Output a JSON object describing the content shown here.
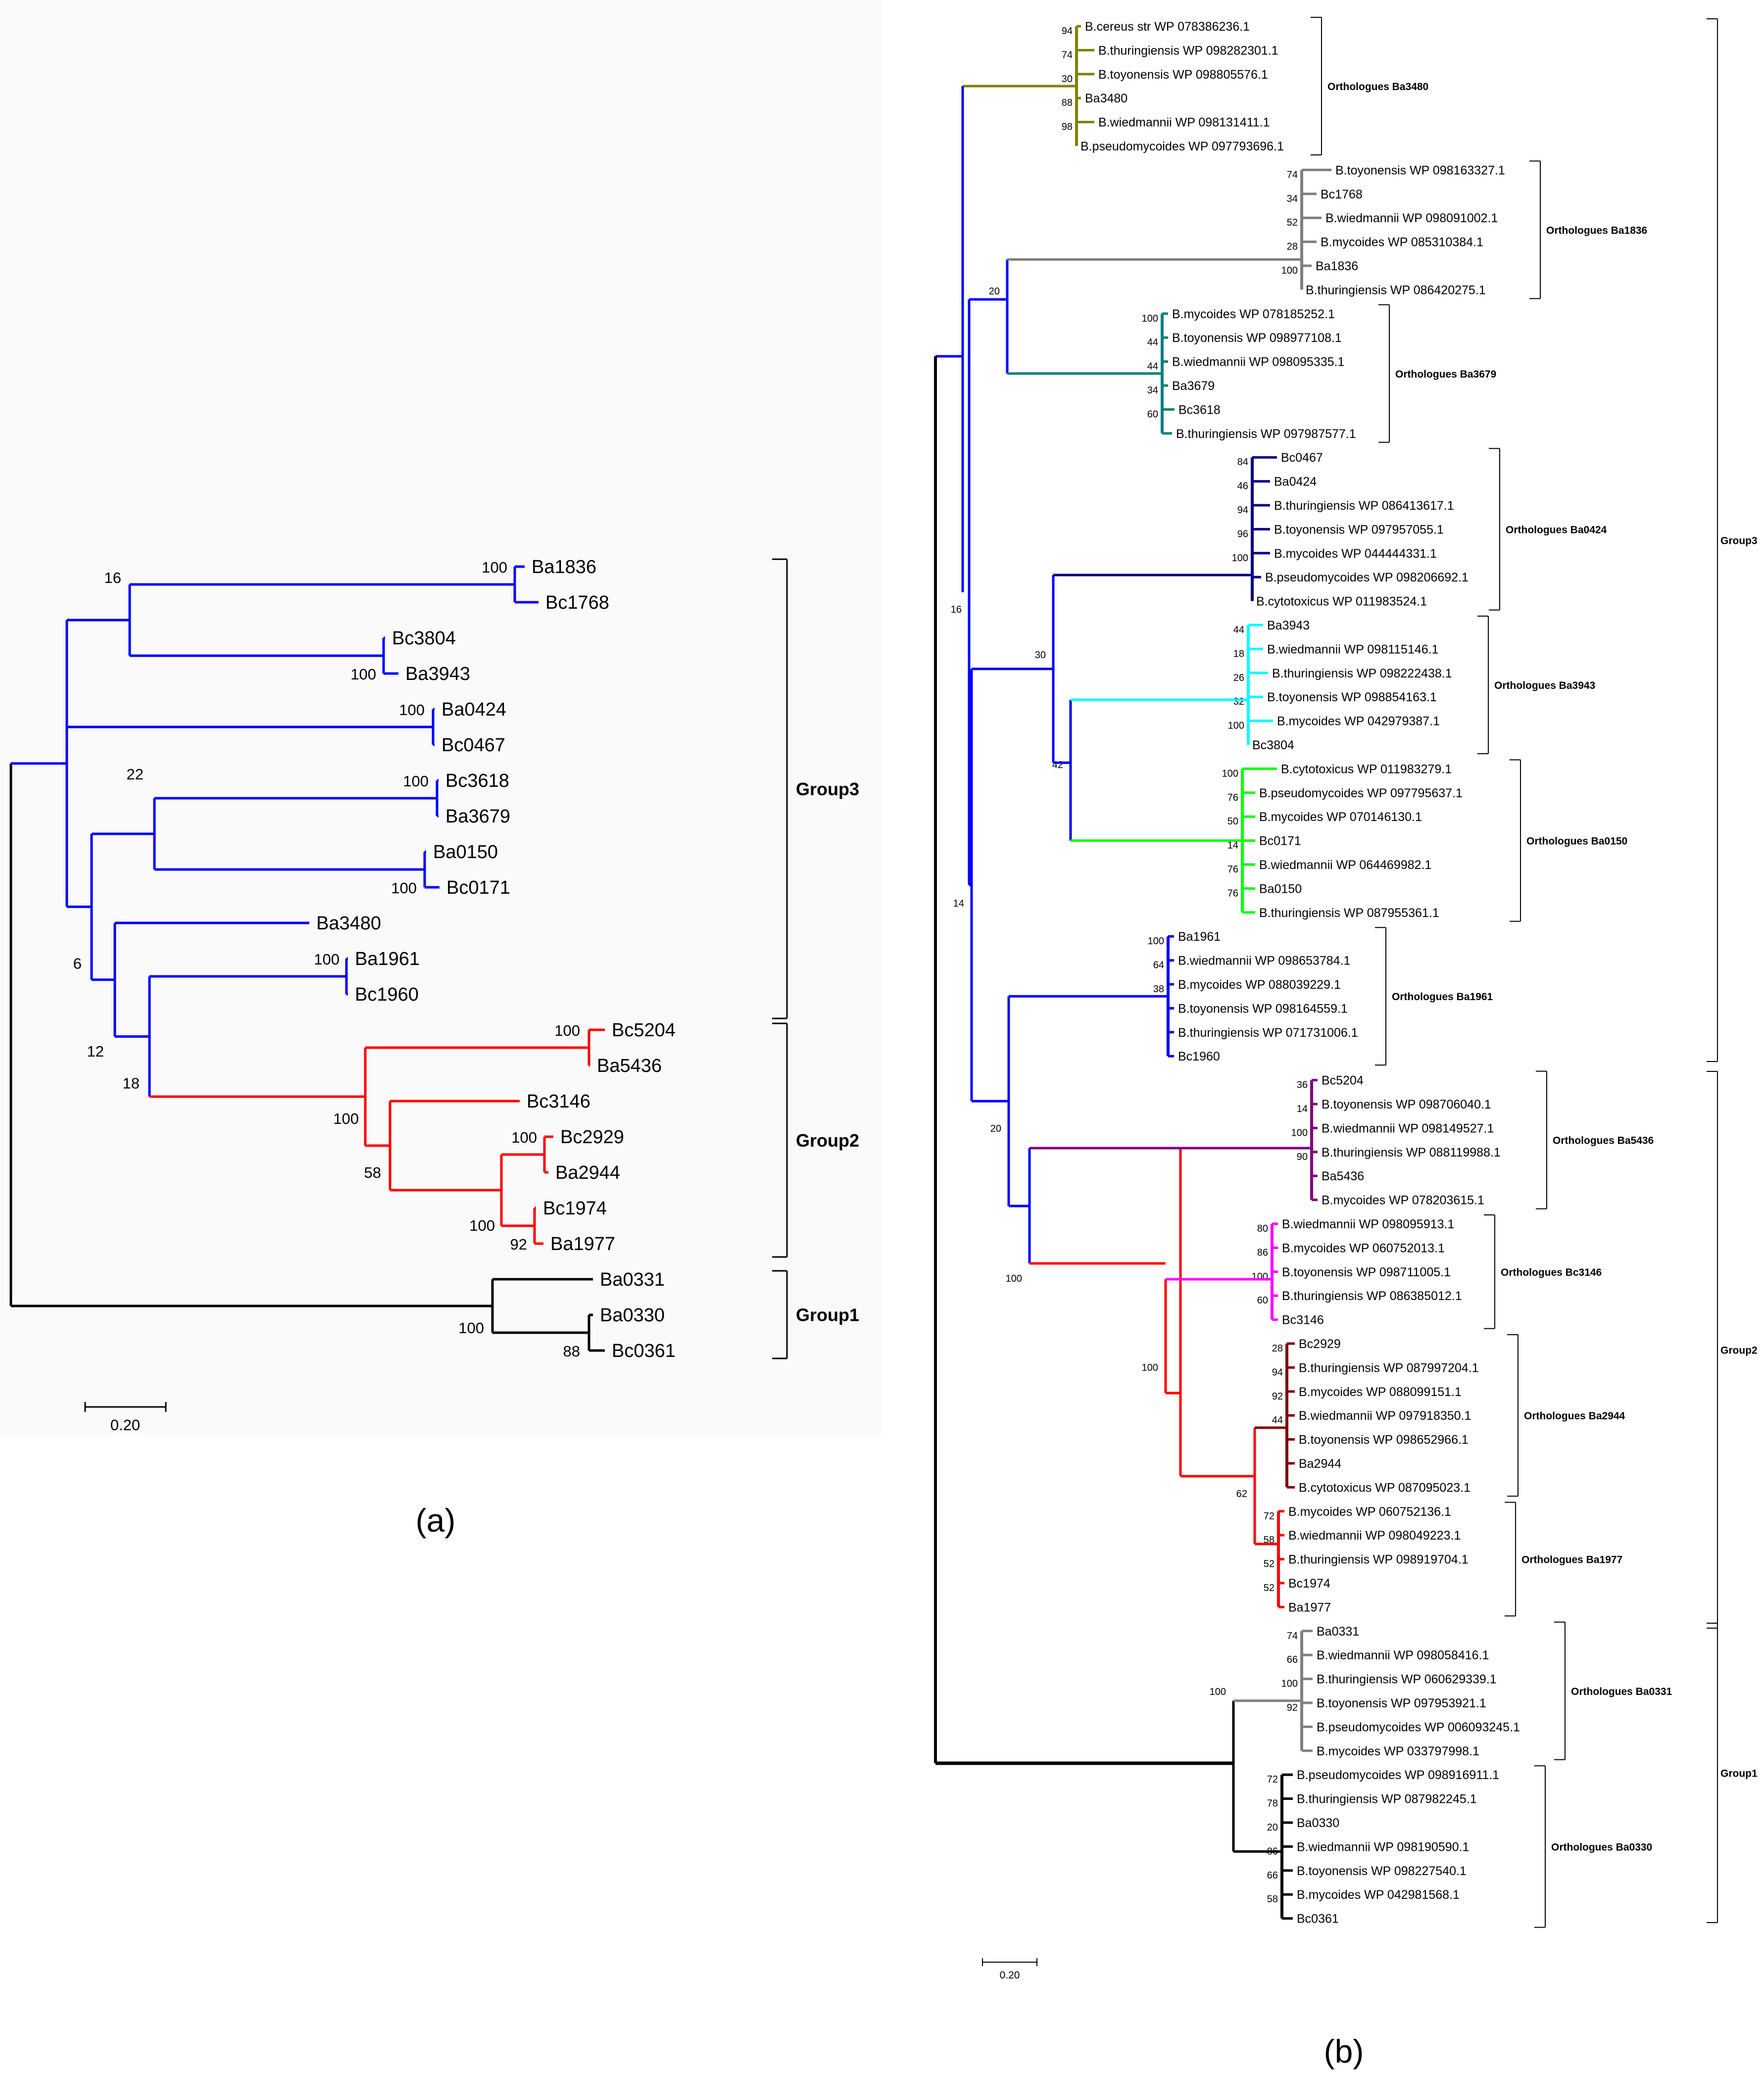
{
  "panel_a": {
    "caption": "(a)",
    "scale_label": "0.20",
    "leaves": [
      "Ba1836",
      "Bc1768",
      "Bc3804",
      "Ba3943",
      "Ba0424",
      "Bc0467",
      "Bc3618",
      "Ba3679",
      "Ba0150",
      "Bc0171",
      "Ba3480",
      "Ba1961",
      "Bc1960",
      "Bc5204",
      "Ba5436",
      "Bc3146",
      "Bc2929",
      "Ba2944",
      "Bc1974",
      "Ba1977",
      "Ba0331",
      "Ba0330",
      "Bc0361"
    ],
    "bootstrap": {
      "ba1836_bc1768": "100",
      "group16": "16",
      "bc3804_ba3943": "100",
      "ba0424_bc0467": "100",
      "bc3618_ba3679": "100",
      "group22": "22",
      "ba0150_bc0171": "100",
      "group6": "6",
      "group12": "12",
      "ba1961_bc1960": "100",
      "group18": "18",
      "bc5204_ba5436": "100",
      "group2_root": "100",
      "bc2929_ba2944": "100",
      "group58": "58",
      "ba2944_inner": "100",
      "bc1974_ba1977": "92",
      "group1_root": "100",
      "ba0330_bc0361": "88"
    },
    "groups": [
      "Group3",
      "Group2",
      "Group1"
    ]
  },
  "panel_b": {
    "caption": "(b)",
    "scale_label": "0.20",
    "colors": {
      "olive": "#808000",
      "gray": "#808080",
      "teal": "#008080",
      "navy": "#000080",
      "cyan": "#00ffff",
      "lime": "#00ff00",
      "blue": "#0000ff",
      "purple": "#800080",
      "magenta": "#ff00ff",
      "maroon": "#800000",
      "red": "#ff0000",
      "black": "#000000"
    },
    "clades": [
      {
        "label": "Orthologues Ba3480",
        "leaves": [
          "B.cereus str WP 078386236.1",
          "B.thuringiensis WP 098282301.1",
          "B.toyonensis WP 098805576.1",
          "Ba3480",
          "B.wiedmannii WP 098131411.1",
          "B.pseudomycoides WP 097793696.1"
        ],
        "support": [
          "94",
          "74",
          "30",
          "88",
          "98"
        ]
      },
      {
        "label": "Orthologues Ba1836",
        "leaves": [
          "B.toyonensis WP 098163327.1",
          "Bc1768",
          "B.wiedmannii WP 098091002.1",
          "B.mycoides WP 085310384.1",
          "Ba1836",
          "B.thuringiensis WP 086420275.1"
        ],
        "support": [
          "74",
          "34",
          "52",
          "28",
          "100"
        ]
      },
      {
        "label": "Orthologues Ba3679",
        "leaves": [
          "B.mycoides WP 078185252.1",
          "B.toyonensis WP 098977108.1",
          "B.wiedmannii WP 098095335.1",
          "Ba3679",
          "Bc3618",
          "B.thuringiensis WP 097987577.1"
        ],
        "support": [
          "100",
          "44",
          "44",
          "34",
          "60"
        ]
      },
      {
        "label": "Orthologues Ba0424",
        "leaves": [
          "Bc0467",
          "Ba0424",
          "B.thuringiensis WP 086413617.1",
          "B.toyonensis WP 097957055.1",
          "B.mycoides WP 044444331.1",
          "B.pseudomycoides WP 098206692.1",
          "B.cytotoxicus WP 011983524.1"
        ],
        "support": [
          "84",
          "46",
          "94",
          "96",
          "100"
        ]
      },
      {
        "label": "Orthologues Ba3943",
        "leaves": [
          "Ba3943",
          "B.wiedmannii WP 098115146.1",
          "B.thuringiensis WP 098222438.1",
          "B.toyonensis WP 098854163.1",
          "B.mycoides WP 042979387.1",
          "Bc3804"
        ],
        "support": [
          "44",
          "18",
          "26",
          "32",
          "100"
        ]
      },
      {
        "label": "Orthologues Ba0150",
        "leaves": [
          "B.cytotoxicus WP 011983279.1",
          "B.pseudomycoides WP 097795637.1",
          "B.mycoides WP 070146130.1",
          "Bc0171",
          "B.wiedmannii WP 064469982.1",
          "Ba0150",
          "B.thuringiensis WP 087955361.1"
        ],
        "support": [
          "100",
          "76",
          "50",
          "14",
          "76",
          "76"
        ]
      },
      {
        "label": "Orthologues Ba1961",
        "leaves": [
          "Ba1961",
          "B.wiedmannii WP 098653784.1",
          "B.mycoides WP 088039229.1",
          "B.toyonensis WP 098164559.1",
          "B.thuringiensis WP 071731006.1",
          "Bc1960"
        ],
        "support": [
          "100",
          "64",
          "38"
        ]
      },
      {
        "label": "Orthologues Ba5436",
        "leaves": [
          "Bc5204",
          "B.toyonensis WP 098706040.1",
          "B.wiedmannii WP 098149527.1",
          "B.thuringiensis WP 088119988.1",
          "Ba5436",
          "B.mycoides WP 078203615.1"
        ],
        "support": [
          "36",
          "14",
          "100",
          "90"
        ]
      },
      {
        "label": "Orthologues Bc3146",
        "leaves": [
          "B.wiedmannii WP 098095913.1",
          "B.mycoides WP 060752013.1",
          "B.toyonensis WP 098711005.1",
          "B.thuringiensis WP 086385012.1",
          "Bc3146"
        ],
        "support": [
          "80",
          "86",
          "100",
          "60"
        ]
      },
      {
        "label": "Orthologues Ba2944",
        "leaves": [
          "Bc2929",
          "B.thuringiensis WP 087997204.1",
          "B.mycoides WP 088099151.1",
          "B.wiedmannii WP 097918350.1",
          "B.toyonensis WP 098652966.1",
          "Ba2944",
          "B.cytotoxicus WP 087095023.1"
        ],
        "support": [
          "28",
          "94",
          "92",
          "44"
        ]
      },
      {
        "label": "Orthologues Ba1977",
        "leaves": [
          "B.mycoides WP 060752136.1",
          "B.wiedmannii WP 098049223.1",
          "B.thuringiensis WP 098919704.1",
          "Bc1974",
          "Ba1977"
        ],
        "support": [
          "72",
          "58",
          "52",
          "52"
        ]
      },
      {
        "label": "Orthologues Ba0331",
        "leaves": [
          "Ba0331",
          "B.wiedmannii WP 098058416.1",
          "B.thuringiensis WP 060629339.1",
          "B.toyonensis WP 097953921.1",
          "B.pseudomycoides WP 006093245.1",
          "B.mycoides WP 033797998.1"
        ],
        "support": [
          "74",
          "66",
          "100",
          "92"
        ]
      },
      {
        "label": "Orthologues Ba0330",
        "leaves": [
          "B.pseudomycoides WP 098916911.1",
          "B.thuringiensis WP 087982245.1",
          "Ba0330",
          "B.wiedmannii WP 098190590.1",
          "B.toyonensis WP 098227540.1",
          "B.mycoides WP 042981568.1",
          "Bc0361"
        ],
        "support": [
          "72",
          "78",
          "20",
          "86",
          "66",
          "58"
        ]
      }
    ],
    "backbone_support": [
      "20",
      "16",
      "30",
      "42",
      "14",
      "20",
      "100",
      "62",
      "100",
      "100"
    ],
    "groups": [
      "Group3",
      "Group2",
      "Group1"
    ]
  }
}
